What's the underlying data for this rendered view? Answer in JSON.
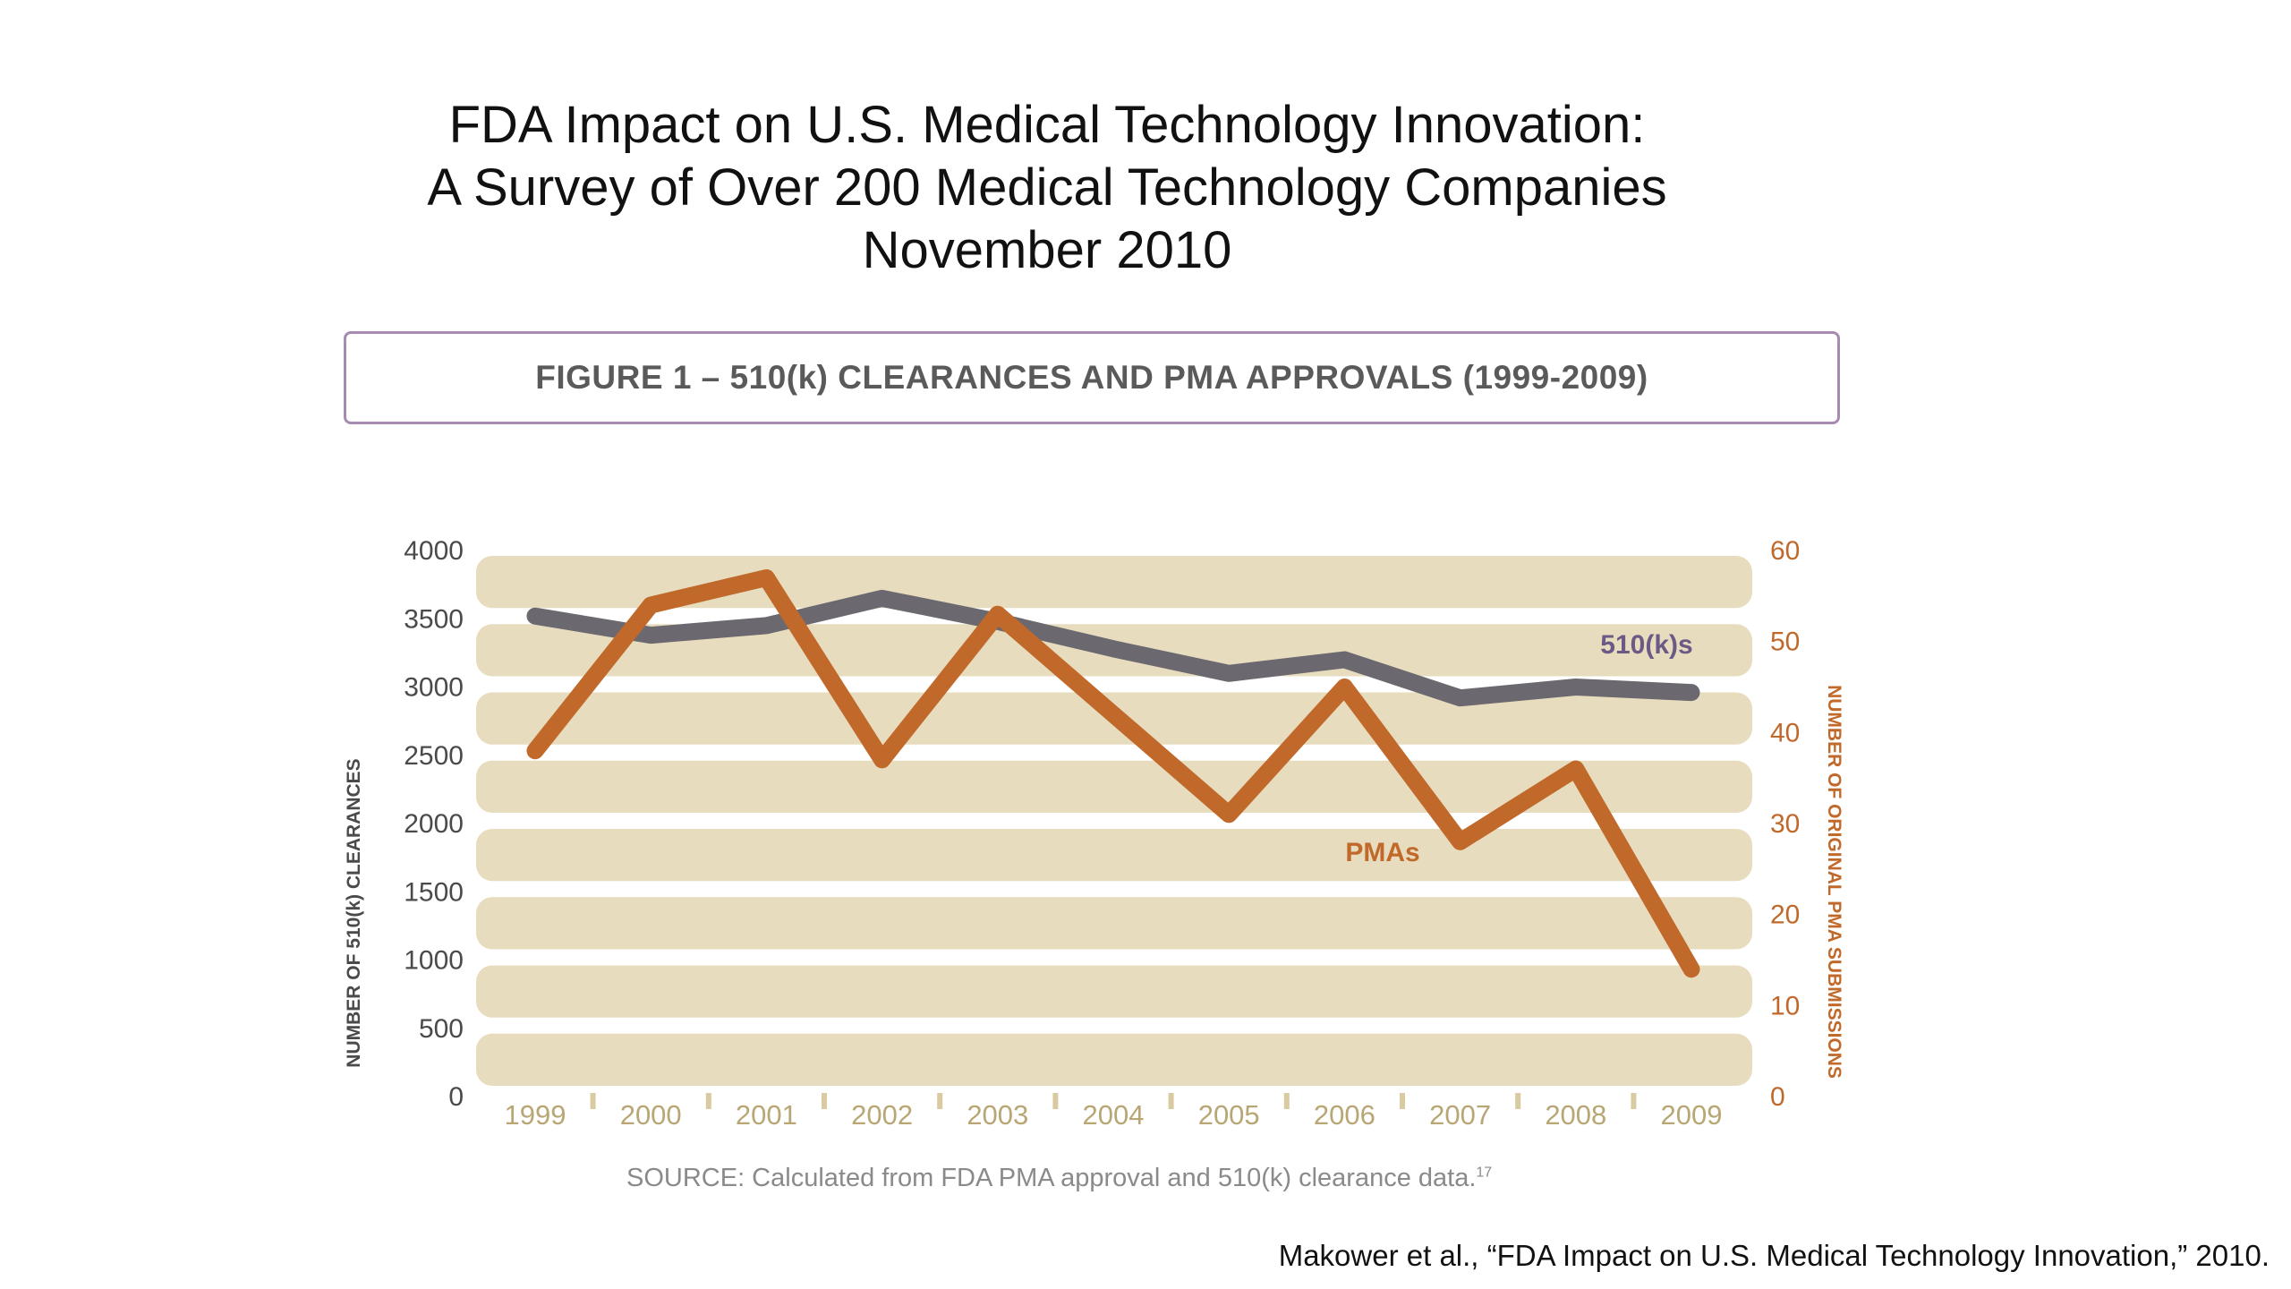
{
  "slide": {
    "title_lines": [
      "FDA Impact on U.S. Medical Technology Innovation:",
      "A Survey of Over 200 Medical Technology Companies",
      "November 2010"
    ],
    "citation": "Makower et al., “FDA Impact on U.S. Medical Technology Innovation,” 2010."
  },
  "figure": {
    "heading": "FIGURE 1 – 510(k) CLEARANCES AND PMA APPROVALS (1999-2009)",
    "source": "SOURCE: Calculated from FDA PMA approval and 510(k) clearance data.",
    "source_ref": "17"
  },
  "chart_data": {
    "type": "line",
    "categories": [
      "1999",
      "2000",
      "2001",
      "2002",
      "2003",
      "2004",
      "2005",
      "2006",
      "2007",
      "2008",
      "2009"
    ],
    "ylabel": "NUMBER OF 510(k) CLEARANCES",
    "ylabel_right": "NUMBER OF ORIGINAL PMA SUBMISSIONS",
    "ylim": [
      0,
      4000
    ],
    "yticks": [
      0,
      500,
      1000,
      1500,
      2000,
      2500,
      3000,
      3500,
      4000
    ],
    "ylim_right": [
      0,
      60
    ],
    "yticks_right": [
      0,
      10,
      20,
      30,
      40,
      50,
      60
    ],
    "series": [
      {
        "name": "510(k)s",
        "axis": "left",
        "color": "#6b6870",
        "values": [
          3520,
          3380,
          3450,
          3650,
          3480,
          3280,
          3100,
          3200,
          2920,
          3000,
          2960
        ]
      },
      {
        "name": "PMAs",
        "axis": "right",
        "color": "#c0692a",
        "values": [
          38,
          54,
          57,
          37,
          53,
          42,
          31,
          45,
          28,
          36,
          14
        ]
      }
    ],
    "band_color": "#e8dcbf",
    "grid": true,
    "legend": "inline labels"
  }
}
